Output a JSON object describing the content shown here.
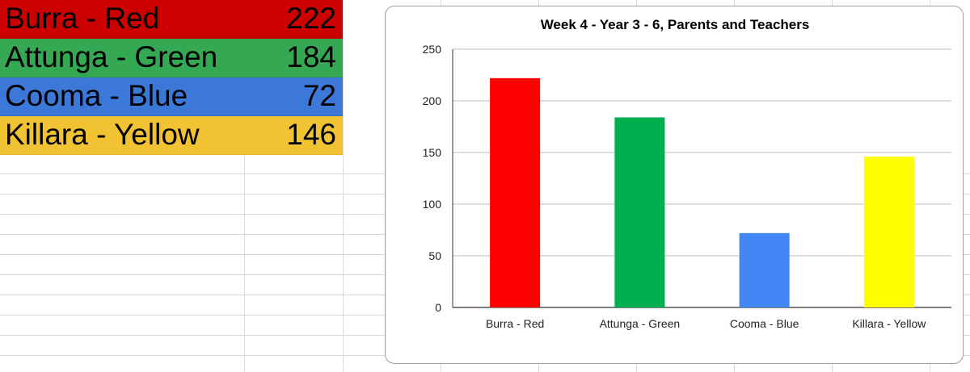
{
  "table": {
    "rows": [
      {
        "name": "Burra - Red",
        "value": "222",
        "bg": "#cc0000"
      },
      {
        "name": "Attunga - Green",
        "value": "184",
        "bg": "#34a853"
      },
      {
        "name": "Cooma - Blue",
        "value": "72",
        "bg": "#3c78d8"
      },
      {
        "name": "Killara - Yellow",
        "value": "146",
        "bg": "#f1c232"
      }
    ]
  },
  "chart_data": {
    "type": "bar",
    "title": "Week 4 - Year 3 - 6, Parents and Teachers",
    "categories": [
      "Burra - Red",
      "Attunga - Green",
      "Cooma - Blue",
      "Killara - Yellow"
    ],
    "values": [
      222,
      184,
      72,
      146
    ],
    "colors": [
      "#ff0000",
      "#00b050",
      "#4285f4",
      "#ffff00"
    ],
    "ylim": [
      0,
      250
    ],
    "yticks": [
      0,
      50,
      100,
      150,
      200,
      250
    ],
    "grid": true,
    "xlabel": "",
    "ylabel": ""
  }
}
